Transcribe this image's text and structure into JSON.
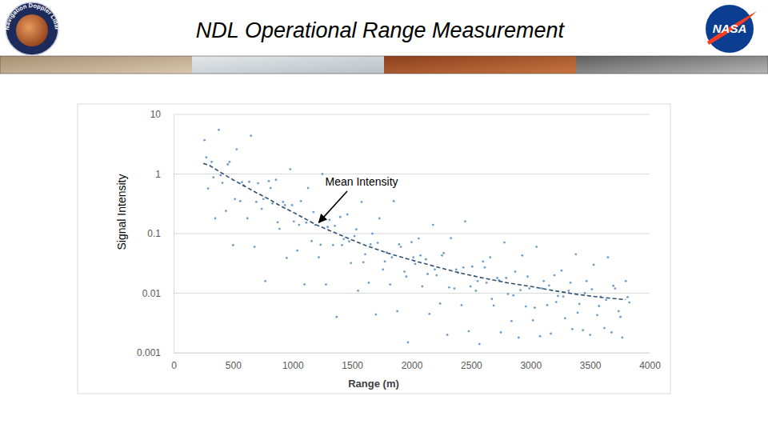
{
  "slide": {
    "title": "NDL Operational Range Measurement",
    "logos": [
      "Navigation Doppler Lidar",
      "NASA"
    ]
  },
  "chart_data": {
    "type": "scatter",
    "x_label": "Range (m)",
    "y_label": "Signal Intensity",
    "xlim": [
      0,
      4000
    ],
    "xticks": [
      0,
      500,
      1000,
      1500,
      2000,
      2500,
      3000,
      3500,
      4000
    ],
    "ylim": [
      0.001,
      10
    ],
    "yticks": [
      0.001,
      0.01,
      0.1,
      1,
      10
    ],
    "log": "y",
    "grid": "y",
    "series": [
      {
        "type": "scatter",
        "color": "#6d9ccc",
        "marker": "circle",
        "x": [
          260,
          290,
          320,
          350,
          380,
          410,
          440,
          470,
          500,
          530,
          560,
          590,
          620,
          650,
          680,
          710,
          740,
          770,
          800,
          830,
          860,
          890,
          920,
          950,
          980,
          1010,
          1040,
          1070,
          1100,
          1130,
          1160,
          1190,
          1220,
          1250,
          1280,
          1310,
          1340,
          1370,
          1400,
          1430,
          1460,
          1490,
          1520,
          1550,
          1580,
          1610,
          1640,
          1670,
          1700,
          1730,
          1760,
          1790,
          1820,
          1850,
          1880,
          1910,
          1940,
          1970,
          2000,
          2030,
          2060,
          2090,
          2120,
          2150,
          2180,
          2210,
          2240,
          2270,
          2300,
          2330,
          2360,
          2390,
          2420,
          2450,
          2480,
          2510,
          2540,
          2570,
          2600,
          2630,
          2660,
          2690,
          2720,
          2750,
          2780,
          2810,
          2840,
          2870,
          2900,
          2930,
          2960,
          2990,
          3020,
          3050,
          3080,
          3110,
          3140,
          3170,
          3200,
          3230,
          3260,
          3290,
          3320,
          3350,
          3380,
          3410,
          3440,
          3470,
          3500,
          3530,
          3560,
          3590,
          3620,
          3650,
          3680,
          3710,
          3740,
          3770,
          3800,
          3830,
          275,
          335,
          395,
          455,
          515,
          575,
          635,
          695,
          755,
          815,
          875,
          935,
          995,
          1055,
          1115,
          1175,
          1235,
          1295,
          1355,
          1415,
          1475,
          1535,
          1595,
          1655,
          1715,
          1775,
          1835,
          1895,
          1955,
          2015,
          2075,
          2135,
          2195,
          2255,
          2315,
          2375,
          2435,
          2495,
          2555,
          2615,
          2675,
          2735,
          2795,
          2855,
          2915,
          2975,
          3035,
          3095,
          3155,
          3215,
          3275,
          3335,
          3395,
          3455,
          3515,
          3575,
          3635,
          3695,
          3755,
          3815
        ],
        "values": [
          3.7,
          0.57,
          1.6,
          0.18,
          5.5,
          0.71,
          0.24,
          1.6,
          0.064,
          2.6,
          0.35,
          0.64,
          0.18,
          4.4,
          0.06,
          0.7,
          0.26,
          0.016,
          0.76,
          0.32,
          0.8,
          0.12,
          0.34,
          0.039,
          1.2,
          0.16,
          0.052,
          0.35,
          0.014,
          0.58,
          0.075,
          0.14,
          0.04,
          1.0,
          0.014,
          0.17,
          0.064,
          0.004,
          0.19,
          0.081,
          0.21,
          0.032,
          0.091,
          0.011,
          0.34,
          0.045,
          0.015,
          0.1,
          0.0044,
          0.18,
          0.025,
          0.048,
          0.014,
          0.35,
          0.005,
          0.06,
          0.023,
          0.0015,
          0.072,
          0.031,
          0.083,
          0.013,
          0.037,
          0.0045,
          0.14,
          0.02,
          0.0067,
          0.047,
          0.002,
          0.084,
          0.012,
          0.022,
          0.0063,
          0.16,
          0.0023,
          0.028,
          0.011,
          0.0014,
          0.034,
          0.015,
          0.04,
          0.0062,
          0.018,
          0.0022,
          0.071,
          0.0097,
          0.0034,
          0.023,
          0.0018,
          0.043,
          0.006,
          0.012,
          0.0035,
          0.06,
          0.0019,
          0.016,
          0.0063,
          0.0021,
          0.02,
          0.009,
          0.024,
          0.0038,
          0.011,
          0.0025,
          0.045,
          0.0066,
          0.0024,
          0.016,
          0.002,
          0.03,
          0.0043,
          0.0087,
          0.0026,
          0.04,
          0.0022,
          0.012,
          0.005,
          0.0018,
          0.016,
          0.007,
          1.9,
          0.88,
          0.95,
          1.45,
          0.38,
          0.73,
          0.74,
          0.34,
          0.38,
          0.58,
          0.155,
          0.3,
          0.3,
          0.14,
          0.153,
          0.23,
          0.065,
          0.129,
          0.135,
          0.064,
          0.074,
          0.118,
          0.033,
          0.066,
          0.07,
          0.034,
          0.04,
          0.066,
          0.019,
          0.04,
          0.043,
          0.021,
          0.025,
          0.043,
          0.0125,
          0.025,
          0.027,
          0.013,
          0.016,
          0.027,
          0.008,
          0.0165,
          0.018,
          0.0092,
          0.0113,
          0.019,
          0.0057,
          0.012,
          0.0135,
          0.0071,
          0.0088,
          0.015,
          0.0047,
          0.01,
          0.0116,
          0.0061,
          0.0077,
          0.0133,
          0.004,
          0.0086
        ]
      },
      {
        "name": "Mean Intensity",
        "type": "line",
        "color": "#2d4f73",
        "line_style": "dashed",
        "marker": "none",
        "x": [
          250,
          300,
          400,
          500,
          600,
          700,
          800,
          900,
          1000,
          1100,
          1200,
          1300,
          1400,
          1500,
          1600,
          1700,
          1800,
          1900,
          2000,
          2200,
          2400,
          2600,
          2800,
          3000,
          3200,
          3400,
          3600,
          3800
        ],
        "values": [
          1.5,
          1.4,
          1.05,
          0.8,
          0.62,
          0.48,
          0.38,
          0.29,
          0.23,
          0.18,
          0.14,
          0.115,
          0.095,
          0.078,
          0.065,
          0.055,
          0.047,
          0.041,
          0.036,
          0.028,
          0.022,
          0.018,
          0.015,
          0.013,
          0.011,
          0.0095,
          0.0085,
          0.0078
        ]
      }
    ]
  }
}
